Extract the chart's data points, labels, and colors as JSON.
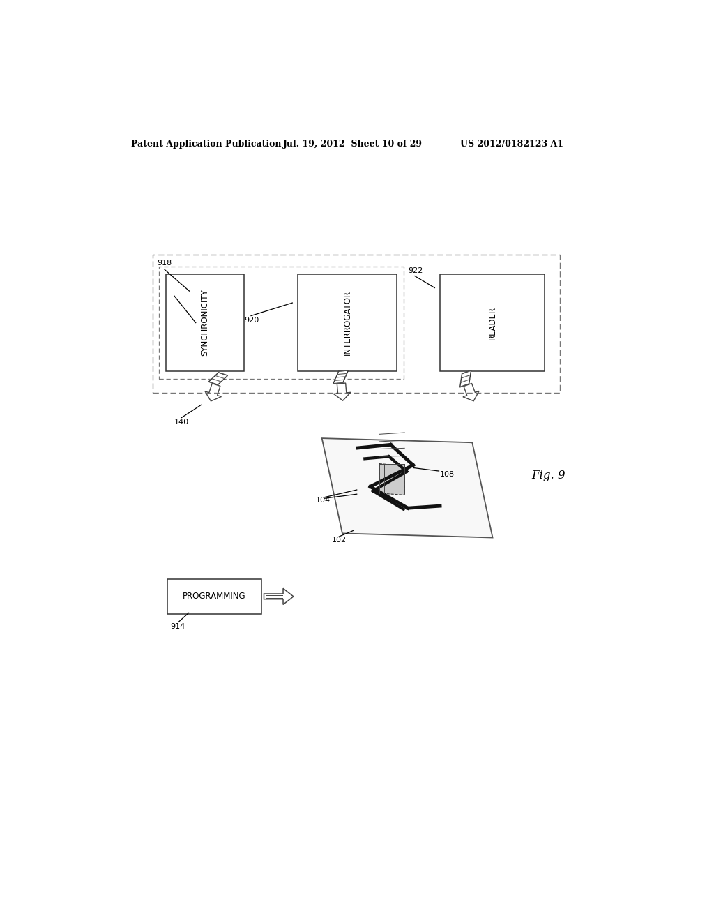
{
  "title_left": "Patent Application Publication",
  "title_mid": "Jul. 19, 2012  Sheet 10 of 29",
  "title_right": "US 2012/0182123 A1",
  "fig_label": "Fig. 9",
  "background_color": "#ffffff",
  "text_color": "#000000",
  "label_918": "918",
  "label_920": "920",
  "label_922": "922",
  "label_140": "140",
  "label_102": "102",
  "label_104": "104",
  "label_108": "108",
  "label_914": "914",
  "box_synchronicity": "SYNCHRONICITY",
  "box_interrogator": "INTERROGATOR",
  "box_reader": "READER",
  "box_programming": "PROGRAMMING"
}
